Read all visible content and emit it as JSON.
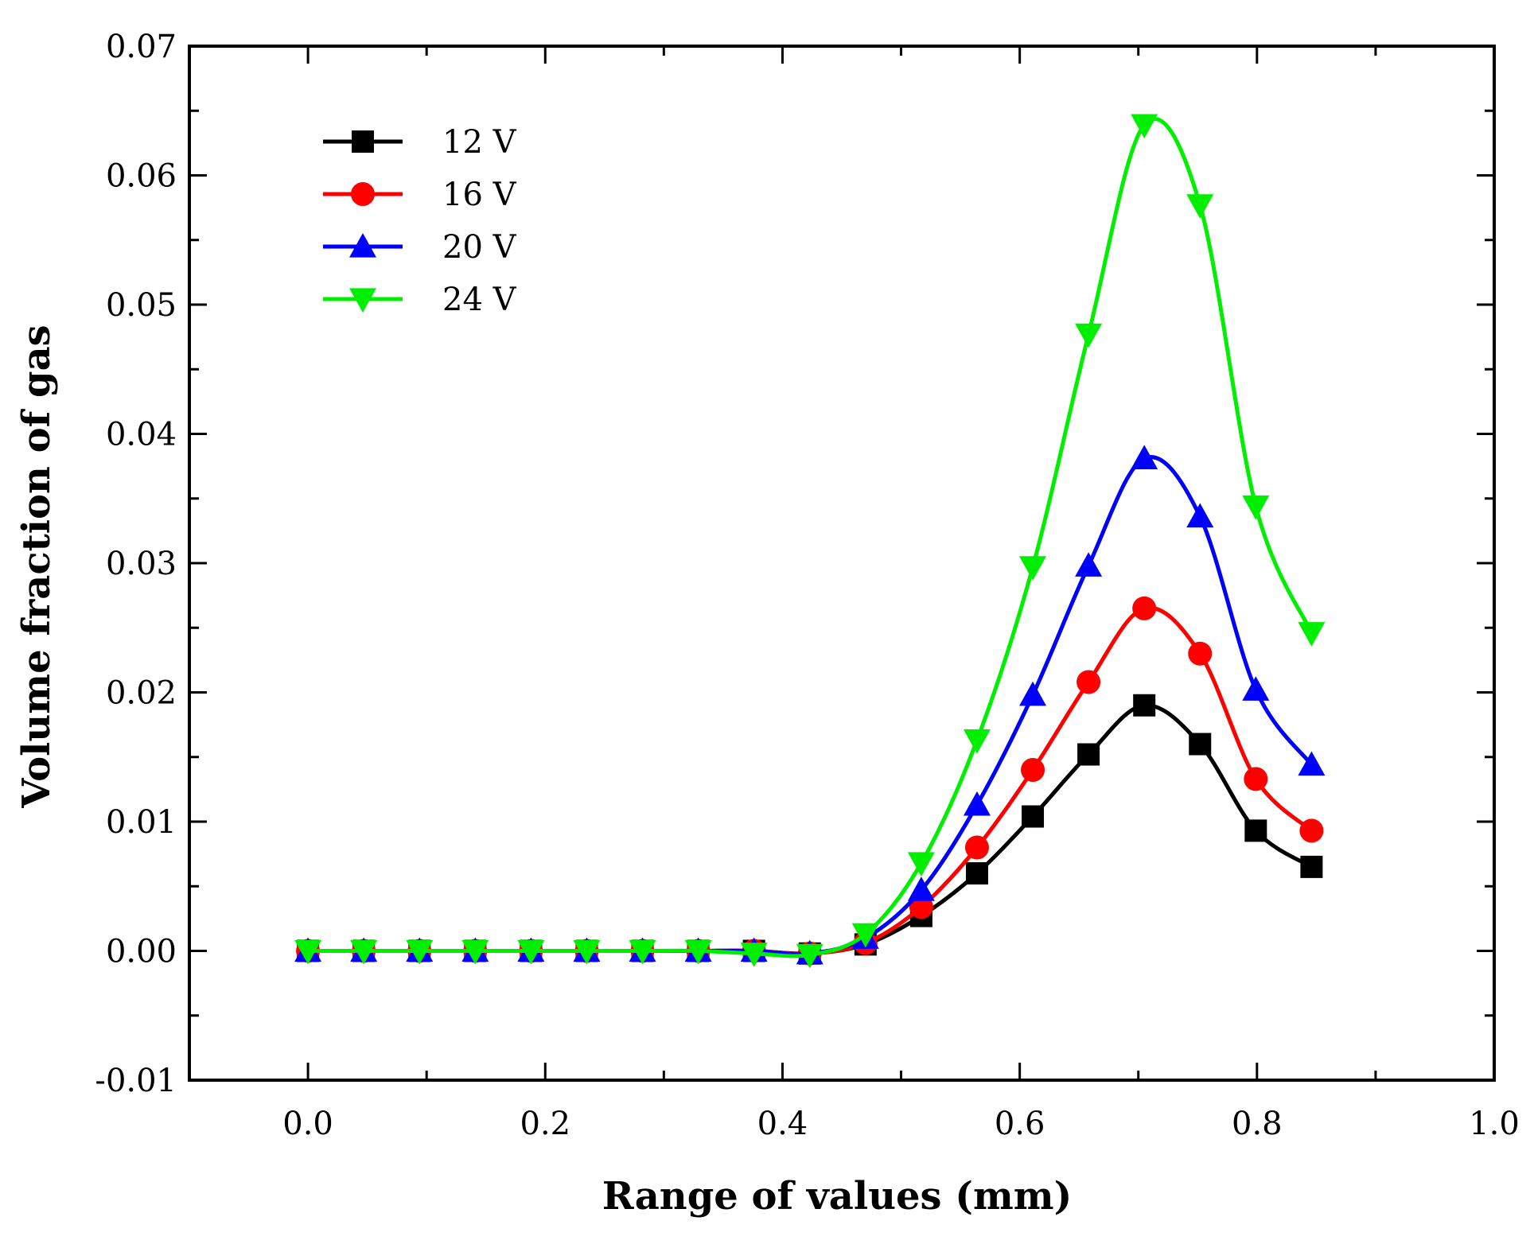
{
  "chart_data": {
    "type": "line",
    "xlabel": "Range of values (mm)",
    "ylabel": "Volume fraction of gas",
    "xlim": [
      -0.1,
      1.0
    ],
    "ylim": [
      -0.01,
      0.07
    ],
    "x_ticks": [
      0.0,
      0.2,
      0.4,
      0.6,
      0.8,
      1.0
    ],
    "x_tick_labels": [
      "0.0",
      "0.2",
      "0.4",
      "0.6",
      "0.8",
      "1.0"
    ],
    "y_ticks": [
      -0.01,
      0.0,
      0.01,
      0.02,
      0.03,
      0.04,
      0.05,
      0.06,
      0.07
    ],
    "y_tick_labels": [
      "-0.01",
      "0.00",
      "0.01",
      "0.02",
      "0.03",
      "0.04",
      "0.05",
      "0.06",
      "0.07"
    ],
    "legend_position": "top-left",
    "x": [
      0.0,
      0.047,
      0.094,
      0.141,
      0.188,
      0.235,
      0.282,
      0.329,
      0.376,
      0.423,
      0.47,
      0.517,
      0.564,
      0.611,
      0.658,
      0.705,
      0.752,
      0.799,
      0.846
    ],
    "series": [
      {
        "name": "12 V",
        "color": "#000000",
        "marker": "square",
        "values": [
          0,
          0,
          0,
          0,
          0,
          0,
          0,
          0,
          0,
          -0.0002,
          0.0005,
          0.0027,
          0.006,
          0.0104,
          0.0152,
          0.019,
          0.016,
          0.0093,
          0.0065
        ]
      },
      {
        "name": "16 V",
        "color": "#ff0000",
        "marker": "circle",
        "values": [
          0,
          0,
          0,
          0,
          0,
          0,
          0,
          0,
          0,
          -0.0002,
          0.0006,
          0.0034,
          0.008,
          0.014,
          0.0208,
          0.0265,
          0.023,
          0.0133,
          0.0093
        ]
      },
      {
        "name": "20 V",
        "color": "#0000ff",
        "marker": "triangle-up",
        "values": [
          0,
          0,
          0,
          0,
          0,
          0,
          0,
          0,
          0,
          -0.0002,
          0.001,
          0.0047,
          0.0113,
          0.0198,
          0.0298,
          0.0381,
          0.0336,
          0.0202,
          0.0144
        ]
      },
      {
        "name": "24 V",
        "color": "#00ee00",
        "marker": "triangle-down",
        "values": [
          0,
          0,
          0,
          0,
          0,
          0,
          0,
          0,
          -0.0002,
          -0.0003,
          0.0013,
          0.0068,
          0.0163,
          0.0297,
          0.0477,
          0.0639,
          0.0577,
          0.0344,
          0.0246
        ]
      }
    ]
  }
}
